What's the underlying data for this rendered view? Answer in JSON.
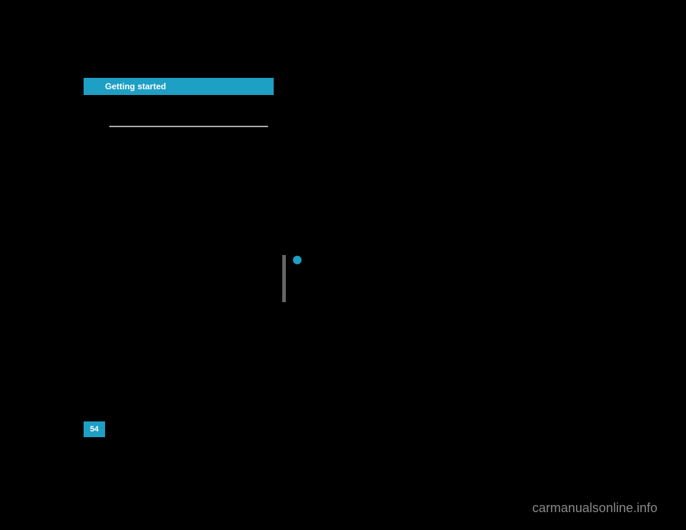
{
  "header": {
    "title": "Getting started",
    "background_color": "#1e9fc4",
    "text_color": "#ffffff",
    "font_size": 12
  },
  "separator": {
    "color_top": "#888888",
    "color_bottom": "#cccccc"
  },
  "info_marker": {
    "icon_color": "#1e9fc4",
    "bar_color": "#666666"
  },
  "page_number": {
    "value": "54",
    "background_color": "#1e9fc4",
    "text_color": "#ffffff",
    "font_size": 11
  },
  "watermark": {
    "text": "carmanualsonline.info",
    "color": "#888888",
    "font_size": 18
  },
  "background_color": "#000000"
}
